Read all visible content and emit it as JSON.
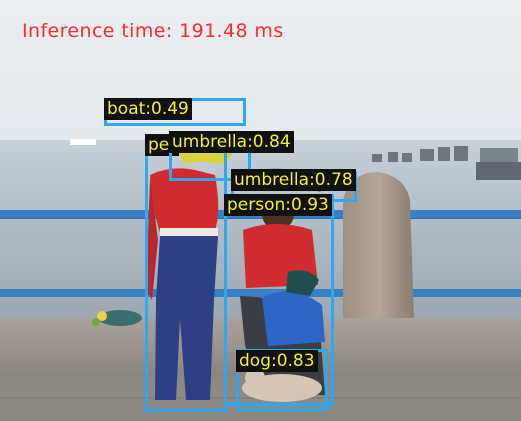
{
  "inference_time_text": "Inference time: 191.48 ms",
  "box_color": "#2ea8f2",
  "label_text_color": "#f2ee3a",
  "label_bg_color": "#111111",
  "overlay_text_color": "#ff2b2b",
  "detections": [
    {
      "label": "boat:0.49",
      "class": "boat",
      "score": 0.49
    },
    {
      "label": "umbrella:0.84",
      "class": "umbrella",
      "score": 0.84
    },
    {
      "label": "umbrella:0.78",
      "class": "umbrella",
      "score": 0.78
    },
    {
      "label": "person:0.93",
      "class": "person",
      "score": 0.93
    },
    {
      "label": "person",
      "class": "person",
      "score": null
    },
    {
      "label": "dog:0.83",
      "class": "dog",
      "score": 0.83
    }
  ]
}
